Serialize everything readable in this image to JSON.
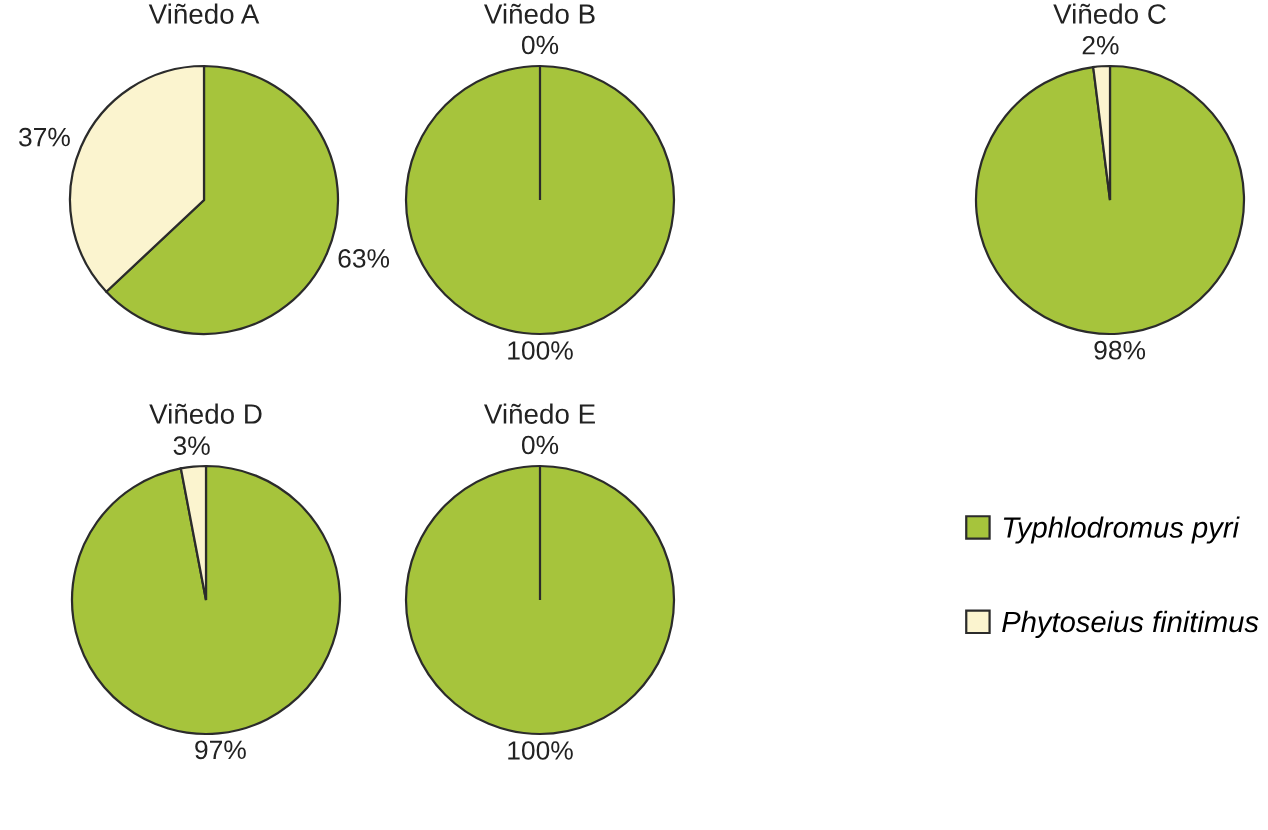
{
  "chart_data": [
    {
      "type": "pie",
      "title": "Viñedo A",
      "categories": [
        "Typhlodromus pyri",
        "Phytoseius finitimus"
      ],
      "values": [
        63,
        37
      ],
      "value_labels": [
        "63%",
        "37%"
      ],
      "colors": [
        "#a6c43c",
        "#fbf4cf"
      ],
      "legend": "bottom right"
    },
    {
      "type": "pie",
      "title": "Viñedo B",
      "values": [
        100,
        0
      ],
      "value_labels": [
        "100%",
        "0%"
      ],
      "colors": [
        "#a6c43c",
        "#fbf4cf"
      ]
    },
    {
      "type": "pie",
      "title": "Viñedo C",
      "values": [
        98,
        2
      ],
      "value_labels": [
        "98%",
        "2%"
      ],
      "colors": [
        "#a6c43c",
        "#fbf4cf"
      ]
    },
    {
      "type": "pie",
      "title": "Viñedo D",
      "values": [
        97,
        3
      ],
      "value_labels": [
        "97%",
        "3%"
      ],
      "colors": [
        "#a6c43c",
        "#fbf4cf"
      ]
    },
    {
      "type": "pie",
      "title": "Viñedo E",
      "values": [
        100,
        0
      ],
      "value_labels": [
        "100%",
        "0%"
      ],
      "colors": [
        "#a6c43c",
        "#fbf4cf"
      ]
    }
  ]
}
